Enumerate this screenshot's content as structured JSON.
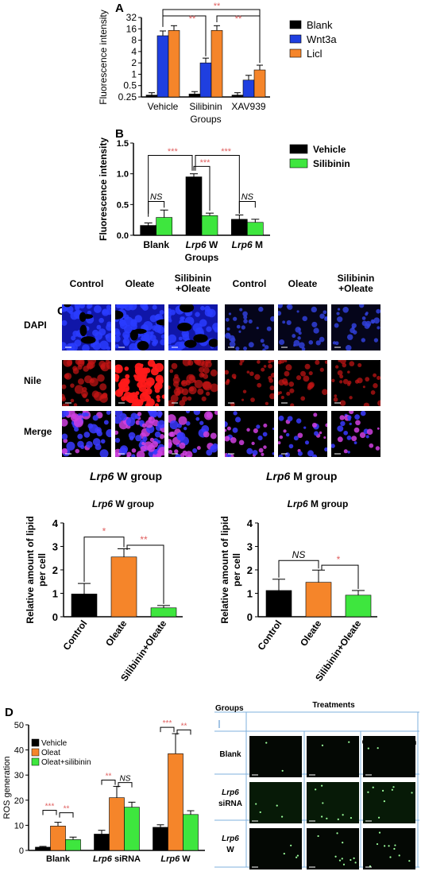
{
  "panels": {
    "A": "A",
    "B": "B",
    "C": "C",
    "D": "D"
  },
  "colors": {
    "black": "#000000",
    "blue": "#1f3fe0",
    "orange": "#f5852a",
    "green": "#3ee63e",
    "red_sig": "#e06060",
    "dapi": "#1a28d8",
    "nile": "#c01010"
  },
  "chart_a": {
    "type": "bar",
    "ylabel": "Fluorescence intensity",
    "xlabel": "Groups",
    "y_scale": "log2",
    "ylim": [
      0.25,
      32
    ],
    "yticks": [
      "32",
      "16",
      "8",
      "4",
      "2",
      "1",
      "0.5",
      "0.25"
    ],
    "categories": [
      "Vehicle",
      "Silibinin",
      "XAV939"
    ],
    "series": [
      {
        "name": "Blank",
        "color": "#000000",
        "values": [
          0.28,
          0.3,
          0.28
        ]
      },
      {
        "name": "Wnt3a",
        "color": "#1f3fe0",
        "values": [
          10.5,
          2.0,
          0.7
        ]
      },
      {
        "name": "Licl",
        "color": "#f5852a",
        "values": [
          14.5,
          14.5,
          1.3
        ]
      }
    ],
    "significance": [
      "**",
      "**",
      "**"
    ],
    "legend": "right"
  },
  "chart_b": {
    "type": "bar",
    "ylabel": "Fluorescence intensity",
    "xlabel": "Groups",
    "ylim": [
      0,
      1.5
    ],
    "yticks": [
      "1.5",
      "1.0",
      "0.5",
      "0.0"
    ],
    "categories": [
      "Blank",
      "Lrp6 W",
      "Lrp6 M"
    ],
    "category_parts": [
      [
        "",
        "Blank"
      ],
      [
        "Lrp6",
        " W"
      ],
      [
        "Lrp6",
        " M"
      ]
    ],
    "series": [
      {
        "name": "Vehicle",
        "color": "#000000",
        "values": [
          0.16,
          0.95,
          0.26
        ]
      },
      {
        "name": "Silibinin",
        "color": "#3ee63e",
        "values": [
          0.29,
          0.32,
          0.21
        ]
      }
    ],
    "significance": [
      "NS",
      "***",
      "NS",
      "***",
      "***"
    ],
    "legend": "top-right"
  },
  "panel_c": {
    "columns": [
      "Control",
      "Oleate",
      "Silibinin\n+Oleate",
      "Control",
      "Oleate",
      "Silibinin\n+Oleate"
    ],
    "col_line1": [
      "Control",
      "Oleate",
      "Silibinin",
      "Control",
      "Oleate",
      "Silibinin"
    ],
    "col_line2": [
      "",
      "",
      "+Oleate",
      "",
      "",
      "+Oleate"
    ],
    "rows": [
      "DAPI",
      "Nile",
      "Merge"
    ],
    "group_w": "Lrp6",
    "group_w_suffix": " W group",
    "group_m": "Lrp6",
    "group_m_suffix": " M group"
  },
  "chart_c1": {
    "type": "bar",
    "title_italic": "Lrp6",
    "title_rest": " W group",
    "ylabel": "Relative amount of lipid per cell",
    "ylabel_line1": "Relative amount of lipid",
    "ylabel_line2": "per cell",
    "ylim": [
      0,
      4
    ],
    "yticks": [
      "4",
      "3",
      "2",
      "1",
      "0"
    ],
    "categories": [
      "Control",
      "Oleate",
      "Silibinin+Oleate"
    ],
    "values": [
      0.97,
      2.55,
      0.38
    ],
    "errors": [
      0.45,
      0.35,
      0.1
    ],
    "colors": [
      "#000000",
      "#f5852a",
      "#3ee63e"
    ],
    "significance": [
      "*",
      "**"
    ]
  },
  "chart_c2": {
    "type": "bar",
    "title_italic": "Lrp6",
    "title_rest": " M group",
    "ylabel_line1": "Relative amount of lipid",
    "ylabel_line2": "per cell",
    "ylim": [
      0,
      4
    ],
    "yticks": [
      "4",
      "3",
      "2",
      "1",
      "0"
    ],
    "categories": [
      "Control",
      "Oleate",
      "Silibinin+Oleate"
    ],
    "values": [
      1.12,
      1.47,
      0.92
    ],
    "errors": [
      0.48,
      0.52,
      0.2
    ],
    "colors": [
      "#000000",
      "#f5852a",
      "#3ee63e"
    ],
    "significance": [
      "NS",
      "*"
    ]
  },
  "chart_d": {
    "type": "bar",
    "ylabel": "ROS generation",
    "ylim": [
      0,
      50
    ],
    "yticks": [
      "50",
      "40",
      "30",
      "20",
      "10",
      "0"
    ],
    "categories": [
      "Blank",
      "Lrp6 siRNA",
      "Lrp6 W"
    ],
    "category_parts": [
      [
        "",
        "Blank"
      ],
      [
        "Lrp6",
        " siRNA"
      ],
      [
        "Lrp6",
        " W"
      ]
    ],
    "series": [
      {
        "name": "Vehicle",
        "color": "#000000",
        "values": [
          1.3,
          6.5,
          9.2
        ]
      },
      {
        "name": "Oleat",
        "color": "#f5852a",
        "values": [
          9.7,
          21.0,
          38.5
        ]
      },
      {
        "name": "Oleat+silibinin",
        "color": "#3ee63e",
        "values": [
          4.3,
          17.2,
          14.3
        ]
      }
    ],
    "errors": [
      [
        0.3,
        1.5,
        1.0
      ],
      [
        1.5,
        4.5,
        8.0
      ],
      [
        1.0,
        2.0,
        1.5
      ]
    ],
    "significance": [
      "***",
      "**",
      "**",
      "NS",
      "***",
      "**"
    ],
    "legend": "top-left"
  },
  "table_d": {
    "groups_label": "Groups",
    "treatments_label": "Treatments",
    "columns": [
      "Vehicle",
      "Oleat",
      "Oleat+silibinin"
    ],
    "rows": [
      [
        "",
        "Blank"
      ],
      [
        "Lrp6",
        "siRNA"
      ],
      [
        "Lrp6",
        "W"
      ]
    ]
  }
}
